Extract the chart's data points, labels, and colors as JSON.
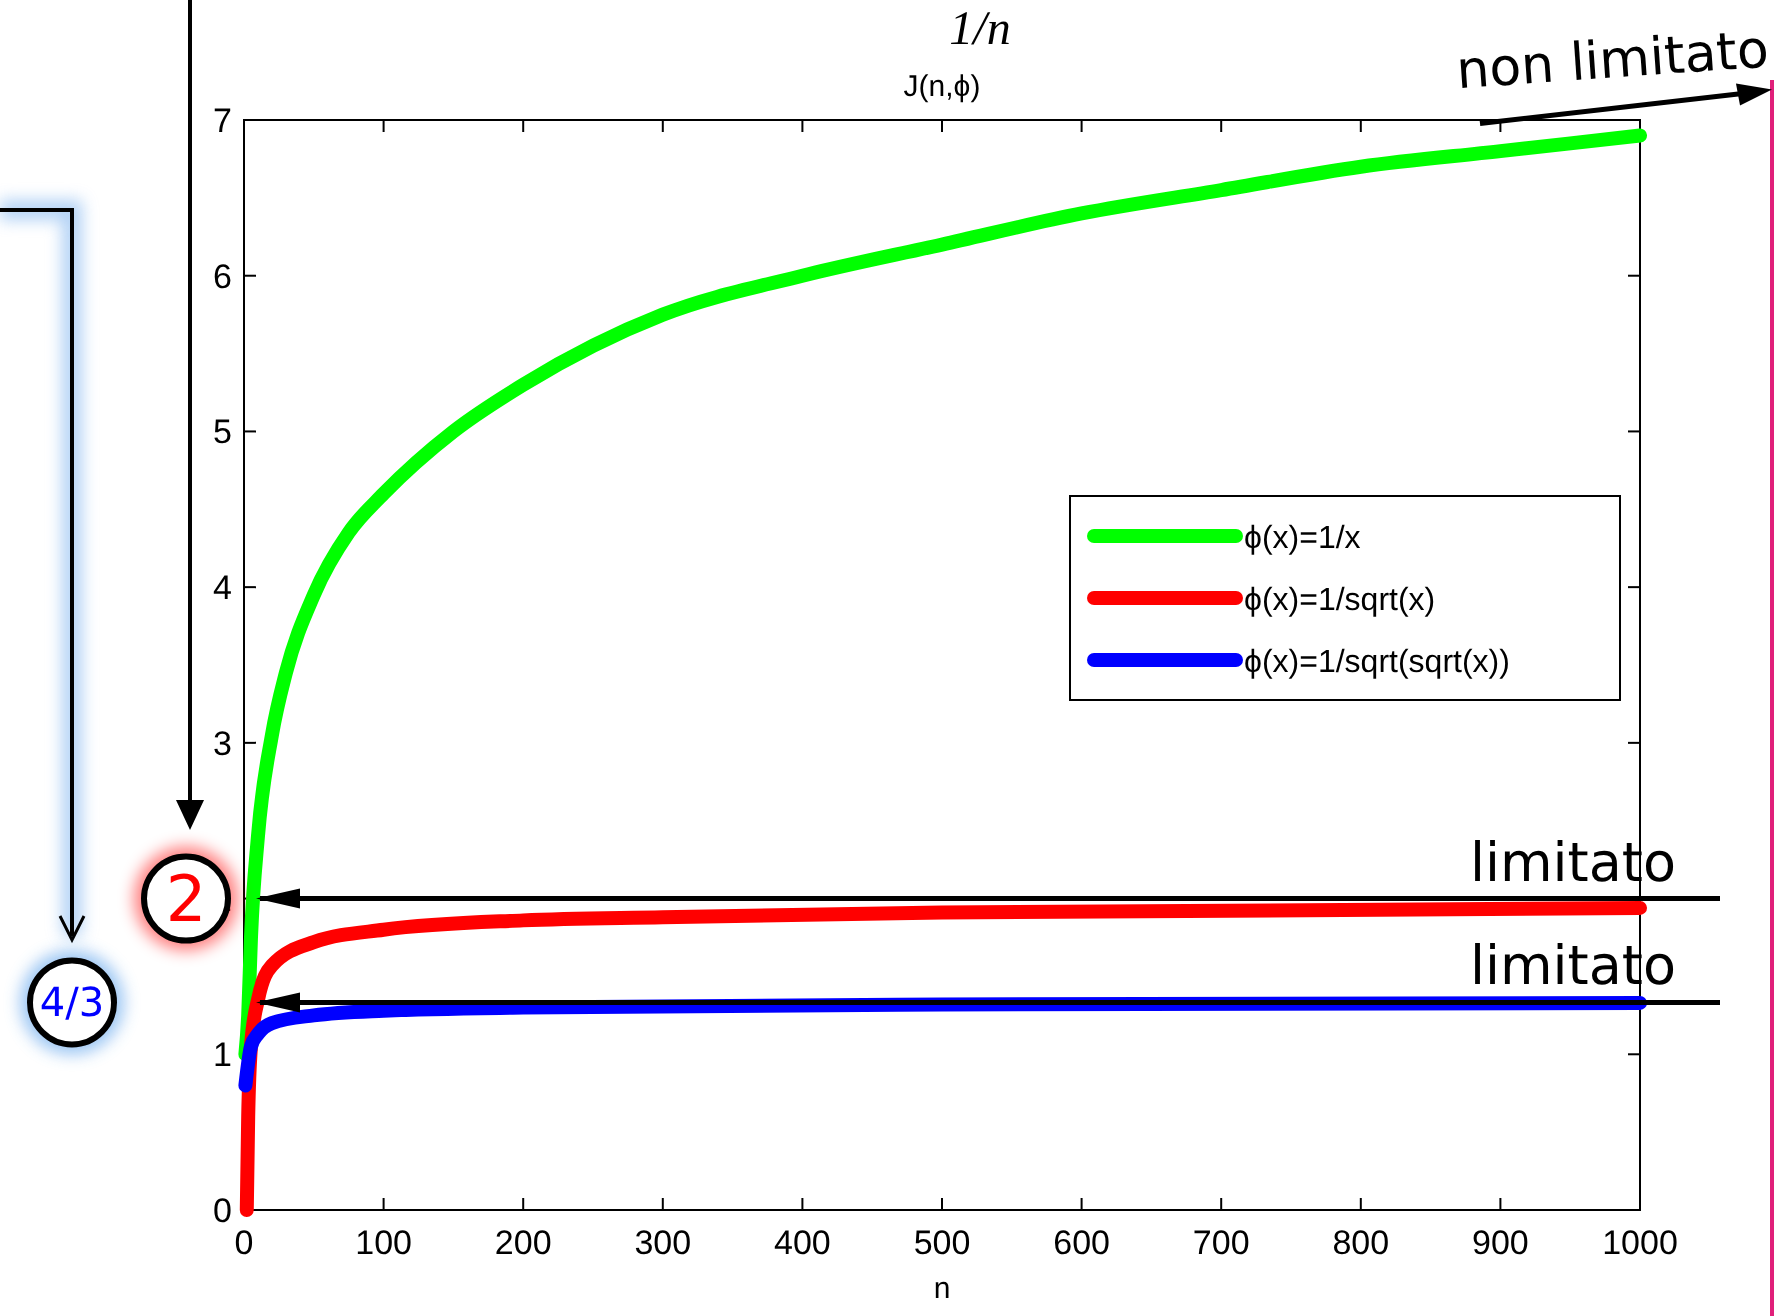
{
  "chart_data": {
    "type": "line",
    "title": "J(n,ϕ)",
    "xlabel": "n",
    "xlim": [
      0,
      1000
    ],
    "ylim": [
      0,
      7
    ],
    "xticks": [
      0,
      100,
      200,
      300,
      400,
      500,
      600,
      700,
      800,
      900,
      1000
    ],
    "yticks": [
      0,
      1,
      2,
      3,
      4,
      5,
      6,
      7
    ],
    "grid": false,
    "legend": "right",
    "line_style": "solid",
    "marker": "none",
    "series": [
      {
        "name": "ϕ(x)=1/x",
        "color": "#00ff00",
        "x": [
          1,
          3,
          5,
          10,
          20,
          30,
          50,
          75,
          100,
          150,
          200,
          300,
          400,
          500,
          600,
          700,
          800,
          900,
          1000
        ],
        "values": [
          1.0,
          1.25,
          1.75,
          2.4,
          3.05,
          3.45,
          3.95,
          4.35,
          4.6,
          5.0,
          5.3,
          5.75,
          6.0,
          6.2,
          6.4,
          6.55,
          6.7,
          6.8,
          6.9
        ]
      },
      {
        "name": "ϕ(x)=1/sqrt(x)",
        "color": "#ff0000",
        "x": [
          2,
          3,
          5,
          10,
          20,
          50,
          100,
          200,
          300,
          500,
          1000
        ],
        "values": [
          0,
          0.6,
          1.05,
          1.35,
          1.57,
          1.72,
          1.8,
          1.86,
          1.88,
          1.91,
          1.94
        ]
      },
      {
        "name": "ϕ(x)=1/sqrt(sqrt(x))",
        "color": "#0000ff",
        "x": [
          1,
          5,
          10,
          20,
          50,
          100,
          200,
          500,
          1000
        ],
        "values": [
          0.8,
          1.05,
          1.13,
          1.2,
          1.25,
          1.28,
          1.3,
          1.32,
          1.33
        ]
      }
    ],
    "ref_lines": [
      {
        "axis": "y",
        "value": 2,
        "label": "limitato",
        "color": "#000000"
      },
      {
        "axis": "y",
        "value": 1.3333,
        "label": "limitato",
        "color": "#000000"
      }
    ],
    "annotations": [
      "1/n",
      {
        "text": "non limitato",
        "x": 1000,
        "y": 6.9
      },
      "2",
      "4/3"
    ]
  }
}
